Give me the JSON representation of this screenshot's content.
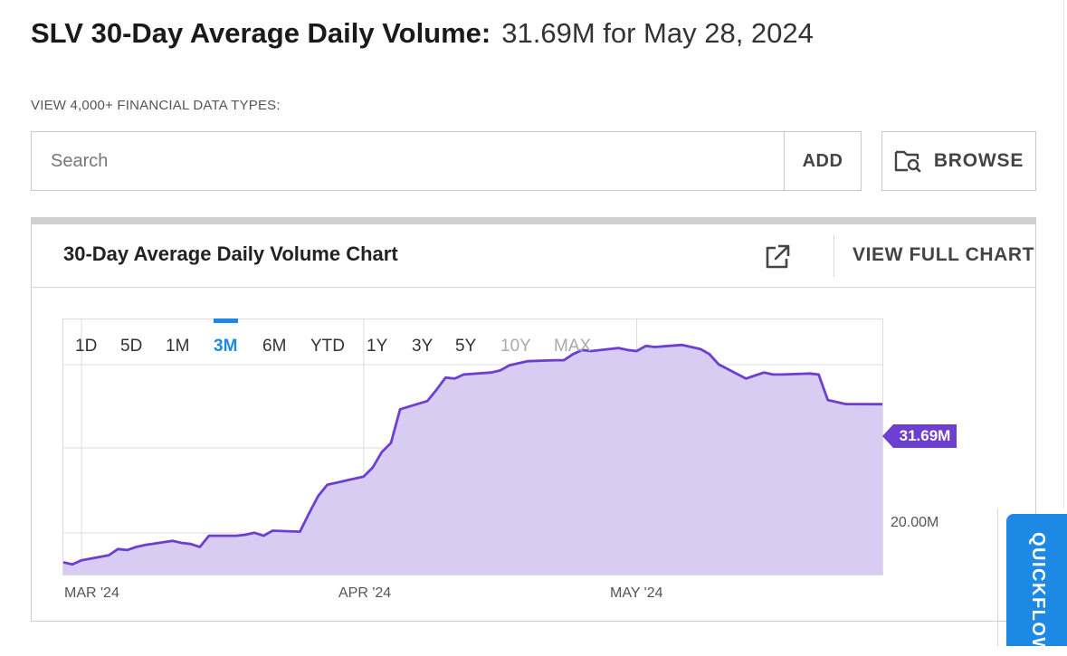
{
  "header": {
    "title_bold": "SLV 30-Day Average Daily Volume:",
    "title_value": "31.69M for May 28, 2024"
  },
  "search": {
    "label": "VIEW 4,000+ FINANCIAL DATA TYPES:",
    "placeholder": "Search",
    "add_label": "ADD",
    "browse_label": "BROWSE",
    "browse_icon": "folder-search-icon"
  },
  "panel": {
    "title": "30-Day Average Daily Volume Chart",
    "view_full_label": "VIEW FULL CHART",
    "external_icon": "external-link-icon"
  },
  "ranges": [
    {
      "label": "1D",
      "state": "normal"
    },
    {
      "label": "5D",
      "state": "normal"
    },
    {
      "label": "1M",
      "state": "normal"
    },
    {
      "label": "3M",
      "state": "active"
    },
    {
      "label": "6M",
      "state": "normal"
    },
    {
      "label": "YTD",
      "state": "normal"
    },
    {
      "label": "1Y",
      "state": "normal"
    },
    {
      "label": "3Y",
      "state": "normal"
    },
    {
      "label": "5Y",
      "state": "normal"
    },
    {
      "label": "10Y",
      "state": "disabled"
    },
    {
      "label": "MAX",
      "state": "disabled"
    }
  ],
  "quickflow": {
    "label": "QUICKFLOW",
    "color": "#1e88e5"
  },
  "colors": {
    "line": "#6d3fd0",
    "fill": "#d9ccf2",
    "active": "#1e88e5"
  },
  "chart_data": {
    "type": "area",
    "x_tick_labels": [
      "MAR '24",
      "APR '24",
      "MAY '24"
    ],
    "y_tick_labels": [
      "20.00M"
    ],
    "last_value_label": "31.69M",
    "grid": true,
    "x": [
      "2024-02-28",
      "2024-02-29",
      "2024-03-01",
      "2024-03-04",
      "2024-03-05",
      "2024-03-06",
      "2024-03-07",
      "2024-03-08",
      "2024-03-11",
      "2024-03-12",
      "2024-03-13",
      "2024-03-14",
      "2024-03-15",
      "2024-03-18",
      "2024-03-19",
      "2024-03-20",
      "2024-03-21",
      "2024-03-22",
      "2024-03-25",
      "2024-03-26",
      "2024-03-27",
      "2024-03-28",
      "2024-04-01",
      "2024-04-02",
      "2024-04-03",
      "2024-04-04",
      "2024-04-05",
      "2024-04-08",
      "2024-04-09",
      "2024-04-10",
      "2024-04-11",
      "2024-04-12",
      "2024-04-15",
      "2024-04-16",
      "2024-04-17",
      "2024-04-18",
      "2024-04-19",
      "2024-04-22",
      "2024-04-23",
      "2024-04-24",
      "2024-04-25",
      "2024-04-26",
      "2024-04-29",
      "2024-04-30",
      "2024-05-01",
      "2024-05-02",
      "2024-05-03",
      "2024-05-06",
      "2024-05-07",
      "2024-05-08",
      "2024-05-09",
      "2024-05-10",
      "2024-05-13",
      "2024-05-14",
      "2024-05-15",
      "2024-05-16",
      "2024-05-17",
      "2024-05-20",
      "2024-05-21",
      "2024-05-22",
      "2024-05-23",
      "2024-05-24",
      "2024-05-28"
    ],
    "values": [
      16.2,
      16.0,
      16.4,
      16.9,
      17.5,
      17.4,
      17.7,
      17.9,
      18.3,
      18.1,
      18.0,
      17.7,
      18.8,
      18.8,
      18.9,
      19.1,
      18.8,
      19.3,
      19.2,
      21.0,
      22.7,
      23.8,
      24.6,
      25.5,
      27.0,
      27.9,
      31.2,
      32.0,
      33.1,
      34.3,
      34.2,
      34.6,
      34.8,
      35.0,
      35.5,
      35.7,
      35.9,
      36.0,
      36.0,
      36.6,
      37.0,
      36.9,
      37.2,
      37.0,
      36.9,
      37.4,
      37.3,
      37.5,
      37.3,
      37.1,
      36.6,
      35.6,
      34.2,
      34.5,
      34.8,
      34.6,
      34.6,
      34.7,
      34.6,
      32.1,
      31.9,
      31.7,
      31.69
    ],
    "ylim": [
      15,
      40
    ]
  }
}
